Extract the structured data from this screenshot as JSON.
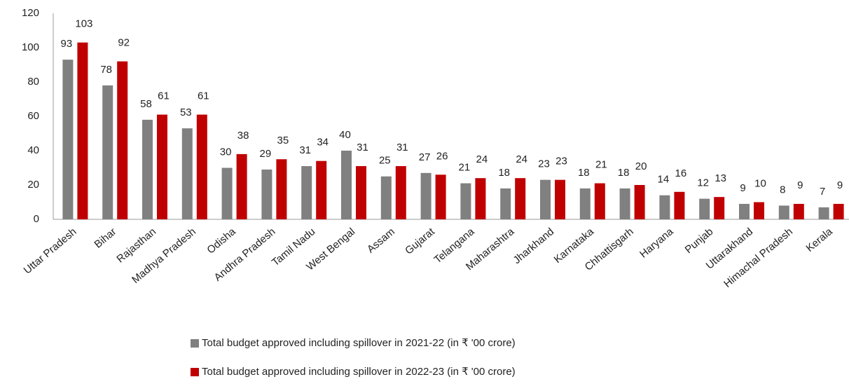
{
  "chart_data": {
    "type": "bar",
    "categories": [
      "Uttar Pradesh",
      "Bihar",
      "Rajasthan",
      "Madhya Pradesh",
      "Odisha",
      "Andhra Pradesh",
      "Tamil Nadu",
      "West Bengal",
      "Assam",
      "Gujarat",
      "Telangana",
      "Maharashtra",
      "Jharkhand",
      "Karnataka",
      "Chhattisgarh",
      "Haryana",
      "Punjab",
      "Uttarakhand",
      "Himachal Pradesh",
      "Kerala"
    ],
    "series": [
      {
        "name": "Total budget approved including spillover in 2021-22 (in ₹ '00 crore)",
        "color": "#808080",
        "values": [
          93,
          78,
          58,
          53,
          30,
          29,
          31,
          40,
          25,
          27,
          21,
          18,
          23,
          18,
          18,
          14,
          12,
          9,
          8,
          7
        ]
      },
      {
        "name": "Total budget approved including spillover in 2022-23 (in ₹ '00 crore)",
        "color": "#c00000",
        "values": [
          103,
          92,
          61,
          61,
          38,
          35,
          34,
          31,
          31,
          26,
          24,
          24,
          23,
          21,
          20,
          16,
          13,
          10,
          9,
          9
        ]
      }
    ],
    "ylim": [
      0,
      120
    ],
    "yticks": [
      0,
      20,
      40,
      60,
      80,
      100,
      120
    ],
    "grid": false,
    "legend": "bottom"
  }
}
